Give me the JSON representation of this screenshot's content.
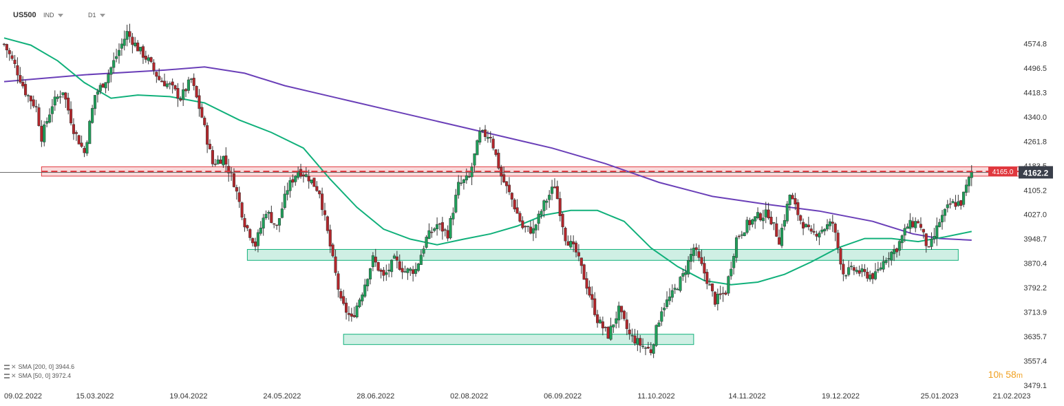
{
  "header": {
    "symbol": "US500",
    "type": "IND",
    "timeframe": "D1"
  },
  "legend": [
    {
      "label": "SMA  [200,  0]",
      "value": "3944.6",
      "color": "#6a3fb8"
    },
    {
      "label": "SMA  [50,  0]",
      "value": "3972.4",
      "color": "#10b07a"
    }
  ],
  "timer": {
    "hours": "10",
    "h": "h",
    "minutes": "58",
    "m": "m"
  },
  "price_tags": {
    "level": {
      "text": "4165.0",
      "color": "#e0383e"
    },
    "last": {
      "text": "4162.2",
      "color": "#3a3f4a"
    }
  },
  "chart_data": {
    "type": "candlestick",
    "ylim": [
      3479.1,
      4653.0
    ],
    "y_ticks": [
      4574.8,
      4496.5,
      4418.3,
      4340.0,
      4261.8,
      4183.5,
      4105.2,
      4027.0,
      3948.7,
      3870.4,
      3792.2,
      3713.9,
      3635.7,
      3557.4,
      3479.1
    ],
    "x_ticks": [
      "09.02.2022",
      "15.03.2022",
      "19.04.2022",
      "24.05.2022",
      "28.06.2022",
      "02.08.2022",
      "06.09.2022",
      "11.10.2022",
      "14.11.2022",
      "19.12.2022",
      "25.01.2023",
      "21.02.2023"
    ],
    "x_tick_days": [
      0,
      34,
      69,
      104,
      139,
      174,
      209,
      244,
      278,
      313,
      350,
      377
    ],
    "zones": [
      {
        "type": "resistance",
        "low": 4150,
        "high": 4180,
        "day_from": 14,
        "day_to": 385,
        "color": "#e0383e"
      },
      {
        "type": "support",
        "low": 3880,
        "high": 3915,
        "day_from": 91,
        "day_to": 357,
        "color": "#10b07a"
      },
      {
        "type": "support",
        "low": 3610,
        "high": 3643,
        "day_from": 127,
        "day_to": 258,
        "color": "#10b07a"
      }
    ],
    "level_line": 4165.0,
    "last_price": 4162.2,
    "sma200": [
      [
        0,
        4453
      ],
      [
        30,
        4475
      ],
      [
        60,
        4490
      ],
      [
        75,
        4500
      ],
      [
        90,
        4480
      ],
      [
        105,
        4440
      ],
      [
        125,
        4400
      ],
      [
        145,
        4360
      ],
      [
        165,
        4320
      ],
      [
        185,
        4280
      ],
      [
        205,
        4240
      ],
      [
        225,
        4190
      ],
      [
        245,
        4130
      ],
      [
        265,
        4085
      ],
      [
        285,
        4060
      ],
      [
        305,
        4038
      ],
      [
        325,
        4005
      ],
      [
        340,
        3965
      ],
      [
        350,
        3950
      ],
      [
        362,
        3944.6
      ]
    ],
    "sma50": [
      [
        0,
        4593
      ],
      [
        10,
        4570
      ],
      [
        20,
        4520
      ],
      [
        30,
        4450
      ],
      [
        40,
        4400
      ],
      [
        50,
        4410
      ],
      [
        62,
        4405
      ],
      [
        75,
        4385
      ],
      [
        88,
        4330
      ],
      [
        100,
        4290
      ],
      [
        112,
        4240
      ],
      [
        122,
        4140
      ],
      [
        132,
        4050
      ],
      [
        142,
        3980
      ],
      [
        152,
        3948
      ],
      [
        162,
        3930
      ],
      [
        172,
        3948
      ],
      [
        182,
        3965
      ],
      [
        192,
        3990
      ],
      [
        202,
        4025
      ],
      [
        212,
        4040
      ],
      [
        222,
        4040
      ],
      [
        232,
        4005
      ],
      [
        242,
        3920
      ],
      [
        252,
        3860
      ],
      [
        262,
        3815
      ],
      [
        272,
        3802
      ],
      [
        282,
        3810
      ],
      [
        292,
        3835
      ],
      [
        302,
        3875
      ],
      [
        312,
        3920
      ],
      [
        322,
        3950
      ],
      [
        332,
        3950
      ],
      [
        342,
        3940
      ],
      [
        352,
        3955
      ],
      [
        362,
        3972.4
      ]
    ],
    "closes_anchor": [
      [
        0,
        4573
      ],
      [
        4,
        4505
      ],
      [
        8,
        4420
      ],
      [
        12,
        4370
      ],
      [
        14,
        4275
      ],
      [
        18,
        4380
      ],
      [
        22,
        4425
      ],
      [
        26,
        4300
      ],
      [
        30,
        4225
      ],
      [
        34,
        4410
      ],
      [
        38,
        4460
      ],
      [
        42,
        4535
      ],
      [
        46,
        4610
      ],
      [
        50,
        4560
      ],
      [
        54,
        4520
      ],
      [
        58,
        4460
      ],
      [
        62,
        4440
      ],
      [
        66,
        4400
      ],
      [
        70,
        4460
      ],
      [
        74,
        4340
      ],
      [
        78,
        4190
      ],
      [
        82,
        4210
      ],
      [
        86,
        4130
      ],
      [
        90,
        4000
      ],
      [
        94,
        3930
      ],
      [
        98,
        4040
      ],
      [
        102,
        3985
      ],
      [
        106,
        4110
      ],
      [
        110,
        4170
      ],
      [
        114,
        4145
      ],
      [
        118,
        4100
      ],
      [
        122,
        3925
      ],
      [
        126,
        3745
      ],
      [
        130,
        3690
      ],
      [
        134,
        3780
      ],
      [
        138,
        3885
      ],
      [
        142,
        3825
      ],
      [
        146,
        3880
      ],
      [
        150,
        3845
      ],
      [
        154,
        3850
      ],
      [
        158,
        3950
      ],
      [
        162,
        3995
      ],
      [
        166,
        3965
      ],
      [
        170,
        4120
      ],
      [
        174,
        4145
      ],
      [
        178,
        4285
      ],
      [
        182,
        4280
      ],
      [
        186,
        4150
      ],
      [
        190,
        4075
      ],
      [
        194,
        3985
      ],
      [
        198,
        3975
      ],
      [
        202,
        4060
      ],
      [
        206,
        4120
      ],
      [
        210,
        3955
      ],
      [
        214,
        3905
      ],
      [
        218,
        3800
      ],
      [
        222,
        3690
      ],
      [
        226,
        3640
      ],
      [
        230,
        3720
      ],
      [
        234,
        3640
      ],
      [
        238,
        3610
      ],
      [
        242,
        3590
      ],
      [
        246,
        3725
      ],
      [
        250,
        3770
      ],
      [
        254,
        3830
      ],
      [
        258,
        3920
      ],
      [
        262,
        3840
      ],
      [
        266,
        3750
      ],
      [
        270,
        3780
      ],
      [
        274,
        3950
      ],
      [
        278,
        3995
      ],
      [
        282,
        4020
      ],
      [
        286,
        4030
      ],
      [
        290,
        3945
      ],
      [
        294,
        4090
      ],
      [
        298,
        4010
      ],
      [
        302,
        3960
      ],
      [
        306,
        3980
      ],
      [
        310,
        4000
      ],
      [
        314,
        3840
      ],
      [
        318,
        3850
      ],
      [
        322,
        3835
      ],
      [
        326,
        3830
      ],
      [
        330,
        3890
      ],
      [
        334,
        3920
      ],
      [
        338,
        3990
      ],
      [
        342,
        4005
      ],
      [
        346,
        3910
      ],
      [
        350,
        4005
      ],
      [
        354,
        4060
      ],
      [
        358,
        4065
      ],
      [
        362,
        4163
      ]
    ]
  }
}
